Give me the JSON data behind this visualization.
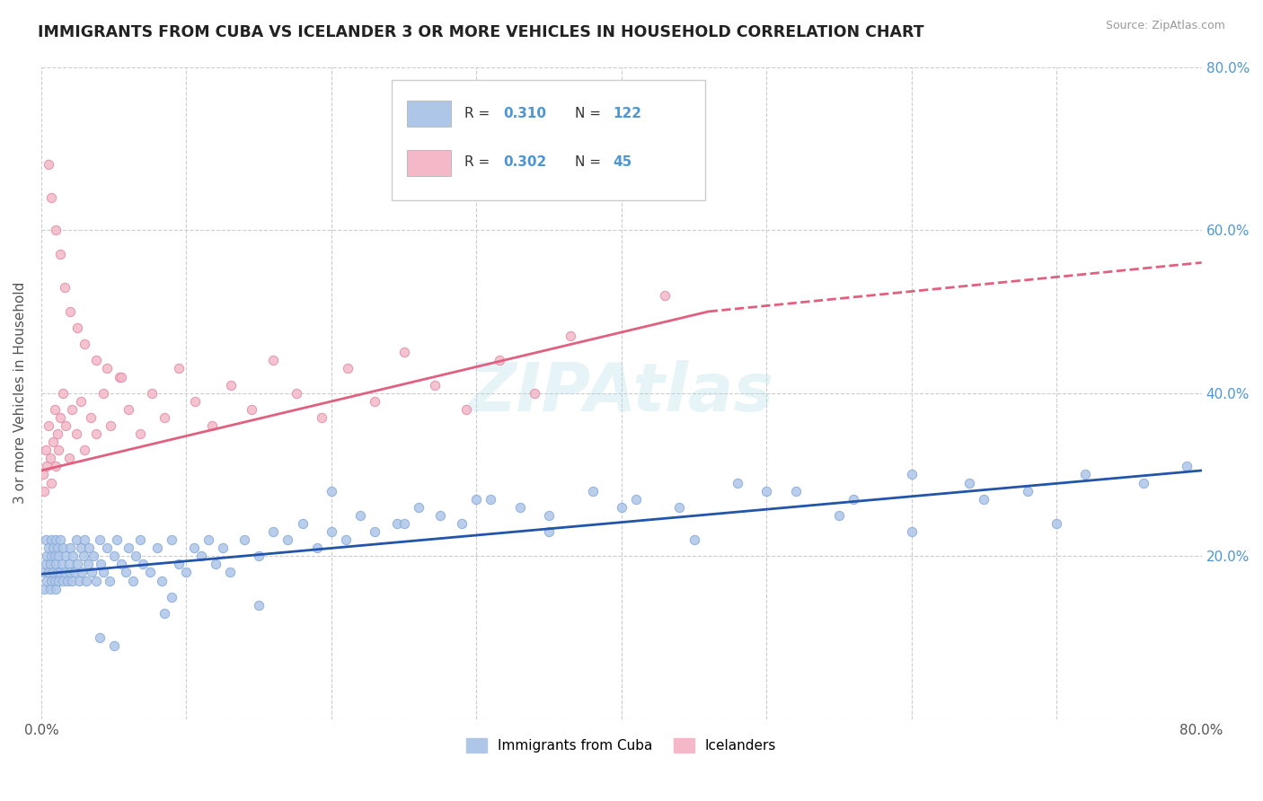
{
  "title": "IMMIGRANTS FROM CUBA VS ICELANDER 3 OR MORE VEHICLES IN HOUSEHOLD CORRELATION CHART",
  "source": "Source: ZipAtlas.com",
  "ylabel": "3 or more Vehicles in Household",
  "xmin": 0.0,
  "xmax": 0.8,
  "ymin": 0.0,
  "ymax": 0.8,
  "ytick_labels": [
    "",
    "20.0%",
    "40.0%",
    "60.0%",
    "80.0%"
  ],
  "ytick_positions": [
    0.0,
    0.2,
    0.4,
    0.6,
    0.8
  ],
  "blue_color": "#4e96d3",
  "blue_scatter_color": "#aec6e8",
  "pink_scatter_color": "#f4b8c8",
  "blue_line_color": "#2255aa",
  "pink_line_color": "#e06080",
  "legend_entries": [
    {
      "label": "Immigrants from Cuba",
      "color": "#aec6e8",
      "R": 0.31,
      "N": 122
    },
    {
      "label": "Icelanders",
      "color": "#f4b8c8",
      "R": 0.302,
      "N": 45
    }
  ],
  "cuba_x": [
    0.001,
    0.002,
    0.003,
    0.003,
    0.004,
    0.004,
    0.005,
    0.005,
    0.006,
    0.006,
    0.007,
    0.007,
    0.007,
    0.008,
    0.008,
    0.009,
    0.009,
    0.01,
    0.01,
    0.01,
    0.011,
    0.011,
    0.012,
    0.012,
    0.013,
    0.013,
    0.014,
    0.015,
    0.015,
    0.016,
    0.017,
    0.018,
    0.019,
    0.02,
    0.02,
    0.021,
    0.022,
    0.023,
    0.024,
    0.025,
    0.026,
    0.027,
    0.028,
    0.029,
    0.03,
    0.031,
    0.032,
    0.033,
    0.035,
    0.036,
    0.038,
    0.04,
    0.041,
    0.043,
    0.045,
    0.047,
    0.05,
    0.052,
    0.055,
    0.058,
    0.06,
    0.063,
    0.065,
    0.068,
    0.07,
    0.075,
    0.08,
    0.083,
    0.085,
    0.09,
    0.095,
    0.1,
    0.105,
    0.11,
    0.115,
    0.12,
    0.125,
    0.13,
    0.14,
    0.15,
    0.16,
    0.17,
    0.18,
    0.19,
    0.2,
    0.21,
    0.22,
    0.23,
    0.245,
    0.26,
    0.275,
    0.29,
    0.31,
    0.33,
    0.35,
    0.38,
    0.41,
    0.44,
    0.48,
    0.52,
    0.56,
    0.6,
    0.64,
    0.68,
    0.72,
    0.76,
    0.79,
    0.04,
    0.05,
    0.09,
    0.15,
    0.2,
    0.25,
    0.3,
    0.35,
    0.4,
    0.45,
    0.5,
    0.55,
    0.6,
    0.65,
    0.7
  ],
  "cuba_y": [
    0.18,
    0.16,
    0.19,
    0.22,
    0.17,
    0.2,
    0.18,
    0.21,
    0.16,
    0.19,
    0.17,
    0.2,
    0.22,
    0.18,
    0.21,
    0.17,
    0.2,
    0.16,
    0.19,
    0.22,
    0.18,
    0.21,
    0.17,
    0.2,
    0.18,
    0.22,
    0.19,
    0.17,
    0.21,
    0.18,
    0.2,
    0.17,
    0.19,
    0.18,
    0.21,
    0.17,
    0.2,
    0.18,
    0.22,
    0.19,
    0.17,
    0.21,
    0.18,
    0.2,
    0.22,
    0.17,
    0.19,
    0.21,
    0.18,
    0.2,
    0.17,
    0.22,
    0.19,
    0.18,
    0.21,
    0.17,
    0.2,
    0.22,
    0.19,
    0.18,
    0.21,
    0.17,
    0.2,
    0.22,
    0.19,
    0.18,
    0.21,
    0.17,
    0.13,
    0.22,
    0.19,
    0.18,
    0.21,
    0.2,
    0.22,
    0.19,
    0.21,
    0.18,
    0.22,
    0.2,
    0.23,
    0.22,
    0.24,
    0.21,
    0.23,
    0.22,
    0.25,
    0.23,
    0.24,
    0.26,
    0.25,
    0.24,
    0.27,
    0.26,
    0.25,
    0.28,
    0.27,
    0.26,
    0.29,
    0.28,
    0.27,
    0.3,
    0.29,
    0.28,
    0.3,
    0.29,
    0.31,
    0.1,
    0.09,
    0.15,
    0.14,
    0.28,
    0.24,
    0.27,
    0.23,
    0.26,
    0.22,
    0.28,
    0.25,
    0.23,
    0.27,
    0.24
  ],
  "iceland_x": [
    0.001,
    0.002,
    0.003,
    0.004,
    0.005,
    0.006,
    0.007,
    0.008,
    0.009,
    0.01,
    0.011,
    0.012,
    0.013,
    0.015,
    0.017,
    0.019,
    0.021,
    0.024,
    0.027,
    0.03,
    0.034,
    0.038,
    0.043,
    0.048,
    0.054,
    0.06,
    0.068,
    0.076,
    0.085,
    0.095,
    0.106,
    0.118,
    0.131,
    0.145,
    0.16,
    0.176,
    0.193,
    0.211,
    0.23,
    0.25,
    0.271,
    0.293,
    0.316,
    0.34,
    0.365
  ],
  "iceland_y": [
    0.3,
    0.28,
    0.33,
    0.31,
    0.36,
    0.32,
    0.29,
    0.34,
    0.38,
    0.31,
    0.35,
    0.33,
    0.37,
    0.4,
    0.36,
    0.32,
    0.38,
    0.35,
    0.39,
    0.33,
    0.37,
    0.35,
    0.4,
    0.36,
    0.42,
    0.38,
    0.35,
    0.4,
    0.37,
    0.43,
    0.39,
    0.36,
    0.41,
    0.38,
    0.44,
    0.4,
    0.37,
    0.43,
    0.39,
    0.45,
    0.41,
    0.38,
    0.44,
    0.4,
    0.47
  ],
  "iceland_outliers_x": [
    0.005,
    0.007,
    0.01,
    0.013,
    0.016,
    0.02,
    0.025,
    0.03,
    0.038,
    0.045,
    0.055,
    0.43
  ],
  "iceland_outliers_y": [
    0.68,
    0.64,
    0.6,
    0.57,
    0.53,
    0.5,
    0.48,
    0.46,
    0.44,
    0.43,
    0.42,
    0.52
  ]
}
